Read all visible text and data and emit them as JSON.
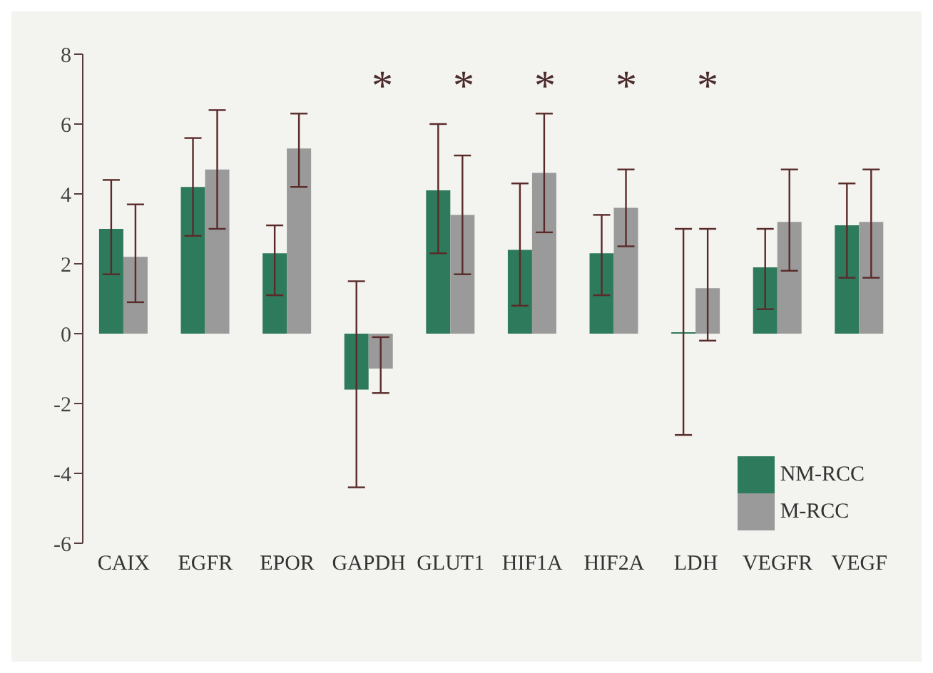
{
  "chart_data": {
    "type": "bar",
    "categories": [
      "CAIX",
      "EGFR",
      "EPOR",
      "GAPDH",
      "GLUT1",
      "HIF1A",
      "HIF2A",
      "LDH",
      "VEGFR",
      "VEGF"
    ],
    "series": [
      {
        "name": "NM-RCC",
        "color": "#2e7a5c",
        "values": [
          3.0,
          4.2,
          2.3,
          -1.6,
          4.1,
          2.4,
          2.3,
          0,
          1.9,
          3.1
        ],
        "errors": [
          [
            1.7,
            4.4
          ],
          [
            2.8,
            5.6
          ],
          [
            1.1,
            3.1
          ],
          [
            -4.4,
            1.5
          ],
          [
            2.3,
            6.0
          ],
          [
            0.8,
            4.3
          ],
          [
            1.1,
            3.4
          ],
          [
            -2.9,
            3.0
          ],
          [
            0.7,
            3.0
          ],
          [
            1.6,
            4.3
          ]
        ]
      },
      {
        "name": "M-RCC",
        "color": "#9a9a9a",
        "values": [
          2.2,
          4.7,
          5.3,
          -1.0,
          3.4,
          4.6,
          3.6,
          1.3,
          3.2,
          3.2
        ],
        "errors": [
          [
            0.9,
            3.7
          ],
          [
            3.0,
            6.4
          ],
          [
            4.2,
            6.3
          ],
          [
            -1.7,
            -0.1
          ],
          [
            1.7,
            5.1
          ],
          [
            2.9,
            6.3
          ],
          [
            2.5,
            4.7
          ],
          [
            -0.2,
            3.0
          ],
          [
            1.8,
            4.7
          ],
          [
            1.6,
            4.7
          ]
        ]
      }
    ],
    "ylim": [
      -6,
      8
    ],
    "yticks": [
      -6,
      -4,
      -2,
      0,
      2,
      4,
      6,
      8
    ],
    "grid": false,
    "legend": "bottom right",
    "annotations": [
      "*",
      "*",
      "*",
      "*",
      "*"
    ]
  }
}
